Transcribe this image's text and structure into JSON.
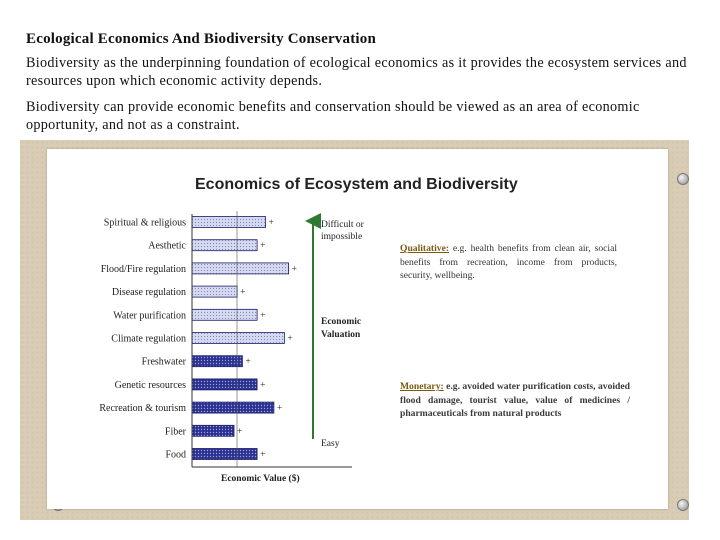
{
  "slide": {
    "heading": "Ecological Economics And Biodiversity Conservation",
    "paragraph1": "Biodiversity as the underpinning foundation of ecological economics as it provides the ecosystem services and resources upon which economic activity depends.",
    "paragraph2": "Biodiversity can provide economic benefits and conservation should be viewed as an area of economic opportunity, and not as a constraint."
  },
  "figure": {
    "difficult_label": "Difficult or impossible",
    "valuation_label": "Economic Valuation",
    "easy_label": "Easy",
    "qualitative_label": "Qualitative:",
    "qualitative_text": " e.g. health benefits from clean air, social benefits from recreation, income from products, security, wellbeing.",
    "monetary_label": "Monetary:",
    "monetary_text": " e.g. avoided water purification costs, avoided flood damage, tourist value, value of medicines / pharmaceuticals from natural products"
  },
  "chart_data": {
    "type": "bar",
    "orientation": "horizontal",
    "title": "Economics of Ecosystem and Biodiversity",
    "xlabel": "Economic Value ($)",
    "categories": [
      "Spiritual & religious",
      "Aesthetic",
      "Flood/Fire regulation",
      "Disease regulation",
      "Water purification",
      "Climate regulation",
      "Freshwater",
      "Genetic resources",
      "Recreation & tourism",
      "Fiber",
      "Food"
    ],
    "values": [
      70,
      62,
      92,
      43,
      62,
      88,
      48,
      62,
      78,
      40,
      62
    ],
    "error_marker": [
      "+",
      "+",
      "+",
      "+",
      "+",
      "+",
      "+",
      "+",
      "+",
      "+",
      "+"
    ],
    "colors": {
      "light_fill": "#c8cde8",
      "dark_fill": "#1a1f8c",
      "border": "#1a1f6a"
    },
    "xlim": [
      0,
      100
    ]
  }
}
